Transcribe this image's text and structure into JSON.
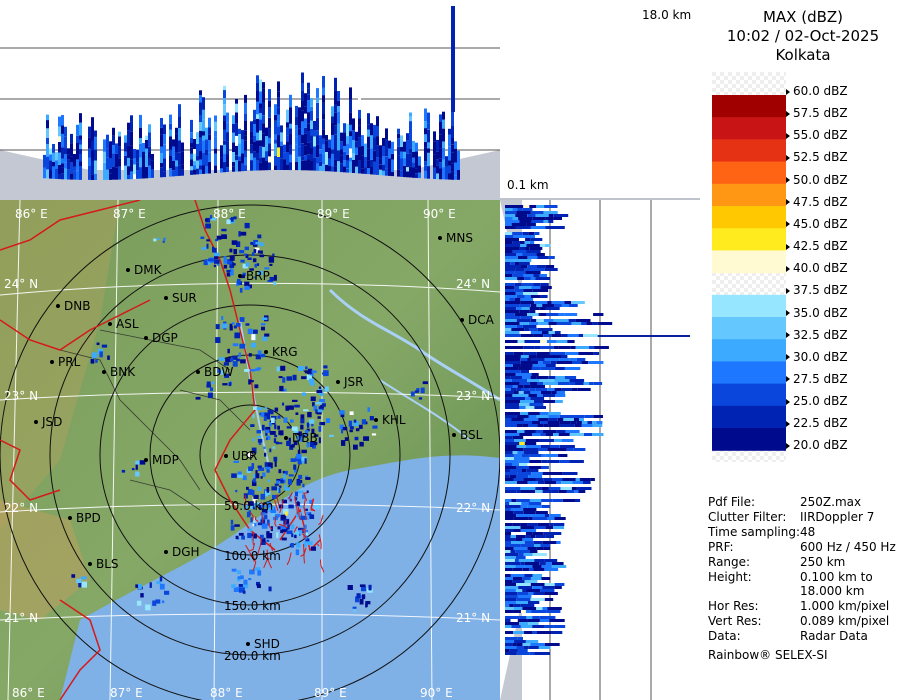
{
  "product": {
    "title": "MAX (dBZ)",
    "datetime": "10:02 / 02-Oct-2025",
    "station": "Kolkata"
  },
  "height_labels": {
    "top": "18.0 km",
    "bottom": "0.1 km"
  },
  "color_scale": [
    {
      "label": "60.0 dBZ",
      "color": "#ffffff"
    },
    {
      "label": "57.5 dBZ",
      "color": "#a00000"
    },
    {
      "label": "55.0 dBZ",
      "color": "#c81414"
    },
    {
      "label": "52.5 dBZ",
      "color": "#e63214"
    },
    {
      "label": "50.0 dBZ",
      "color": "#ff6414"
    },
    {
      "label": "47.5 dBZ",
      "color": "#ff9614"
    },
    {
      "label": "45.0 dBZ",
      "color": "#ffc800"
    },
    {
      "label": "42.5 dBZ",
      "color": "#ffeb1e"
    },
    {
      "label": "40.0 dBZ",
      "color": "#fffad2"
    },
    {
      "label": "37.5 dBZ",
      "color": "#ffffff"
    },
    {
      "label": "35.0 dBZ",
      "color": "#96e6ff"
    },
    {
      "label": "32.5 dBZ",
      "color": "#64c8ff"
    },
    {
      "label": "30.0 dBZ",
      "color": "#3caaff"
    },
    {
      "label": "27.5 dBZ",
      "color": "#1e78ff"
    },
    {
      "label": "25.0 dBZ",
      "color": "#0a46dc"
    },
    {
      "label": "22.5 dBZ",
      "color": "#0023b4"
    },
    {
      "label": "20.0 dBZ",
      "color": "#000a8c"
    }
  ],
  "info": [
    {
      "key": "Pdf File:",
      "value": "250Z.max"
    },
    {
      "key": "Clutter Filter:",
      "value": "IIRDoppler 7"
    },
    {
      "key": "Time sampling:",
      "value": "48"
    },
    {
      "key": "PRF:",
      "value": "600 Hz / 450 Hz"
    },
    {
      "key": "Range:",
      "value": "250 km"
    },
    {
      "key": "Height:",
      "value": "0.100 km to"
    },
    {
      "key": "",
      "value": "18.000 km"
    },
    {
      "key": "Hor Res:",
      "value": "1.000 km/pixel"
    },
    {
      "key": "Vert Res:",
      "value": "0.089 km/pixel"
    },
    {
      "key": "Data:",
      "value": "Radar Data"
    }
  ],
  "credit": "Rainbow® SELEX-SI",
  "map": {
    "lon_labels": [
      "86° E",
      "87° E",
      "88° E",
      "89° E",
      "90° E"
    ],
    "lat_labels": [
      "24° N",
      "23° N",
      "22° N",
      "21° N"
    ],
    "range_labels": [
      "50.0 km",
      "100.0 km",
      "150.0 km",
      "200.0 km"
    ],
    "cities": [
      "MNS",
      "DMK",
      "BRP",
      "DNB",
      "SUR",
      "ASL",
      "DCA",
      "DGP",
      "PRL",
      "KRG",
      "BNK",
      "BDW",
      "JSR",
      "JSD",
      "KHL",
      "DBB",
      "BSL",
      "MDP",
      "UBR",
      "BPD",
      "DGH",
      "BLS",
      "SHD"
    ],
    "colors": {
      "land_green": "#6f9a5c",
      "land_low": "#8fb36b",
      "sea": "#7fb0e6",
      "border": "#d41a1a",
      "range_ring": "#111111"
    }
  }
}
